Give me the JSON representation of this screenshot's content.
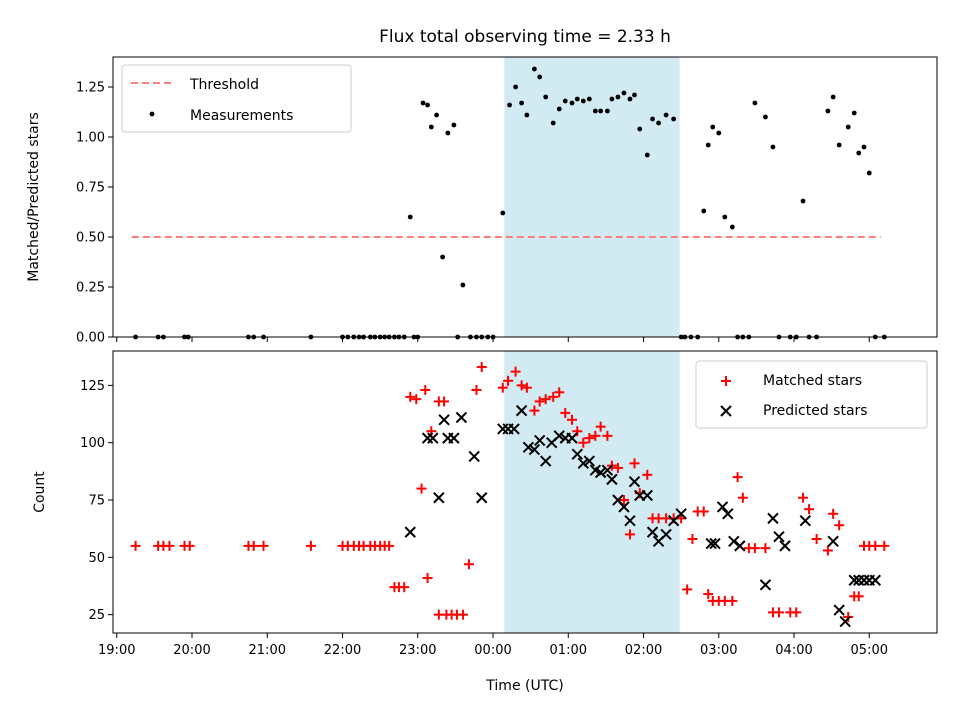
{
  "chart_data": [
    {
      "type": "scatter",
      "panel": "top",
      "title": "Flux total observing time = 2.33 h",
      "xlabel": "",
      "ylabel": "Matched/Predicted stars",
      "xlim": [
        -5.05,
        5.9
      ],
      "ylim": [
        0,
        1.4
      ],
      "yticks": [
        0,
        0.25,
        0.5,
        0.75,
        1.0,
        1.25
      ],
      "ytick_labels": [
        "0.00",
        "0.25",
        "0.50",
        "0.75",
        "1.00",
        "1.25"
      ],
      "xticks": [
        -5,
        -4,
        -3,
        -2,
        -1,
        0,
        1,
        2,
        3,
        4,
        5
      ],
      "xtick_labels": [
        "",
        "",
        "",
        "",
        "",
        "",
        "",
        "",
        "",
        "",
        ""
      ],
      "grid": false,
      "legend_position": "top-left",
      "shaded_span": {
        "x_start": 0.15,
        "x_end": 2.48,
        "color": "#add8e6"
      },
      "series": [
        {
          "name": "Threshold",
          "style": "dashed-line",
          "color": "#ff7f7f",
          "x": [
            -4.8,
            5.15
          ],
          "y": [
            0.5,
            0.5
          ]
        },
        {
          "name": "Measurements",
          "style": "dot",
          "color": "#000000",
          "x": [
            -4.75,
            -4.45,
            -4.38,
            -4.1,
            -4.05,
            -3.25,
            -3.18,
            -3.05,
            -2.42,
            -2.0,
            -1.93,
            -1.85,
            -1.78,
            -1.72,
            -1.63,
            -1.57,
            -1.5,
            -1.44,
            -1.38,
            -1.31,
            -1.25,
            -1.18,
            -1.1,
            -1.05,
            -1.0,
            -0.93,
            -0.87,
            -0.82,
            -0.75,
            -0.67,
            -0.6,
            -0.52,
            -0.47,
            -0.4,
            -0.3,
            -0.22,
            -0.15,
            -0.07,
            0.0,
            0.13,
            0.22,
            0.3,
            0.38,
            0.45,
            0.55,
            0.62,
            0.7,
            0.8,
            0.88,
            0.96,
            1.05,
            1.12,
            1.2,
            1.28,
            1.36,
            1.43,
            1.52,
            1.58,
            1.66,
            1.74,
            1.82,
            1.88,
            1.95,
            2.05,
            2.12,
            2.2,
            2.3,
            2.4,
            2.5,
            2.55,
            2.63,
            2.72,
            2.8,
            2.86,
            2.92,
            3.0,
            3.08,
            3.18,
            3.25,
            3.32,
            3.4,
            3.48,
            3.62,
            3.72,
            3.8,
            3.95,
            4.03,
            4.12,
            4.2,
            4.3,
            4.45,
            4.52,
            4.6,
            4.72,
            4.8,
            4.86,
            4.93,
            5.0,
            5.08,
            5.2
          ],
          "y": [
            0,
            0,
            0,
            0,
            0,
            0,
            0,
            0,
            0,
            0,
            0,
            0,
            0,
            0,
            0,
            0,
            0,
            0,
            0,
            0,
            0,
            0,
            0.6,
            0,
            0,
            1.17,
            1.16,
            1.05,
            1.11,
            0.4,
            1.02,
            1.06,
            0,
            0.26,
            0,
            0,
            0,
            0,
            0,
            0.62,
            1.16,
            1.25,
            1.17,
            1.11,
            1.34,
            1.3,
            1.2,
            1.07,
            1.14,
            1.18,
            1.17,
            1.19,
            1.18,
            1.19,
            1.13,
            1.13,
            1.13,
            1.19,
            1.2,
            1.22,
            1.19,
            1.21,
            1.04,
            0.91,
            1.09,
            1.07,
            1.11,
            1.09,
            0,
            0,
            0,
            0,
            0.63,
            0.96,
            1.05,
            1.02,
            0.6,
            0.55,
            0,
            0,
            0,
            1.17,
            1.1,
            0.95,
            0,
            0,
            0,
            0.68,
            0,
            0,
            1.13,
            1.2,
            0.96,
            1.05,
            1.12,
            0.92,
            0.95,
            0.82,
            0,
            0
          ]
        }
      ]
    },
    {
      "type": "scatter",
      "panel": "bottom",
      "title": "",
      "xlabel": "Time (UTC)",
      "ylabel": "Count",
      "xlim": [
        -5.05,
        5.9
      ],
      "ylim": [
        17,
        140
      ],
      "yticks": [
        25,
        50,
        75,
        100,
        125
      ],
      "ytick_labels": [
        "25",
        "50",
        "75",
        "100",
        "125"
      ],
      "xticks": [
        -5,
        -4,
        -3,
        -2,
        -1,
        0,
        1,
        2,
        3,
        4,
        5
      ],
      "xtick_labels": [
        "19:00",
        "20:00",
        "21:00",
        "22:00",
        "23:00",
        "00:00",
        "01:00",
        "02:00",
        "03:00",
        "04:00",
        "05:00"
      ],
      "grid": false,
      "legend_position": "top-right",
      "shaded_span": {
        "x_start": 0.15,
        "x_end": 2.48,
        "color": "#add8e6"
      },
      "series": [
        {
          "name": "Matched stars",
          "style": "plus",
          "color": "#ff0000",
          "x": [
            -4.75,
            -4.45,
            -4.38,
            -4.3,
            -4.1,
            -4.03,
            -3.25,
            -3.18,
            -3.05,
            -2.42,
            -2.0,
            -1.93,
            -1.85,
            -1.78,
            -1.72,
            -1.63,
            -1.57,
            -1.5,
            -1.44,
            -1.38,
            -1.31,
            -1.25,
            -1.18,
            -1.1,
            -1.02,
            -0.95,
            -0.9,
            -0.87,
            -0.82,
            -0.72,
            -0.65,
            -0.72,
            -0.62,
            -0.55,
            -0.48,
            -0.4,
            -0.32,
            -0.22,
            -0.15,
            0.13,
            0.2,
            0.3,
            0.38,
            0.45,
            0.55,
            0.62,
            0.7,
            0.8,
            0.88,
            0.96,
            1.05,
            1.12,
            1.2,
            1.28,
            1.36,
            1.43,
            1.52,
            1.58,
            1.66,
            1.74,
            1.82,
            1.88,
            1.95,
            2.05,
            2.12,
            2.2,
            2.3,
            2.4,
            2.5,
            2.58,
            2.65,
            2.72,
            2.8,
            2.86,
            2.92,
            3.0,
            3.08,
            3.18,
            3.25,
            3.32,
            3.4,
            3.48,
            3.62,
            3.72,
            3.8,
            3.95,
            4.03,
            4.12,
            4.2,
            4.3,
            4.45,
            4.52,
            4.6,
            4.72,
            4.8,
            4.86,
            4.93,
            5.0,
            5.08,
            5.2
          ],
          "y": [
            55,
            55,
            55,
            55,
            55,
            55,
            55,
            55,
            55,
            55,
            55,
            55,
            55,
            55,
            55,
            55,
            55,
            55,
            55,
            55,
            37,
            37,
            37,
            120,
            119,
            80,
            123,
            41,
            105,
            118,
            118,
            25,
            25,
            25,
            25,
            25,
            47,
            123,
            133,
            124,
            127,
            131,
            125,
            124,
            114,
            118,
            119,
            120,
            122,
            113,
            110,
            105,
            100,
            102,
            103,
            107,
            103,
            90,
            89,
            75,
            60,
            91,
            78,
            86,
            67,
            67,
            67,
            67,
            67,
            36,
            58,
            70,
            70,
            34,
            31,
            31,
            31,
            31,
            85,
            76,
            54,
            54,
            54,
            26,
            26,
            26,
            26,
            76,
            71,
            58,
            53,
            69,
            64,
            24,
            33,
            33,
            55,
            55,
            55,
            55
          ],
          "note": ""
        },
        {
          "name": "Predicted stars",
          "style": "x",
          "color": "#000000",
          "x": [
            -1.1,
            -0.87,
            -0.8,
            -0.72,
            -0.65,
            -0.6,
            -0.52,
            -0.42,
            -0.25,
            -0.15,
            0.13,
            0.2,
            0.28,
            0.38,
            0.47,
            0.55,
            0.62,
            0.7,
            0.78,
            0.88,
            0.96,
            1.05,
            1.12,
            1.2,
            1.28,
            1.36,
            1.43,
            1.52,
            1.58,
            1.66,
            1.74,
            1.82,
            1.88,
            1.95,
            2.05,
            2.12,
            2.2,
            2.3,
            2.4,
            2.5,
            2.9,
            2.95,
            3.05,
            3.12,
            3.2,
            3.28,
            3.62,
            3.72,
            3.8,
            3.88,
            4.15,
            4.52,
            4.6,
            4.68,
            4.8,
            4.86,
            4.93,
            5.0,
            5.08
          ],
          "y": [
            61,
            102,
            102,
            76,
            110,
            102,
            102,
            111,
            94,
            76,
            106,
            106,
            106,
            114,
            98,
            97,
            101,
            92,
            100,
            103,
            102,
            102,
            95,
            91,
            92,
            88,
            87,
            88,
            84,
            75,
            72,
            66,
            83,
            77,
            77,
            61,
            57,
            60,
            66,
            69,
            56,
            56,
            72,
            69,
            57,
            55,
            38,
            67,
            59,
            55,
            66,
            57,
            27,
            22,
            40,
            40,
            40,
            40,
            40
          ]
        }
      ]
    }
  ],
  "legend": {
    "top": [
      "Threshold",
      "Measurements"
    ],
    "bottom": [
      "Matched stars",
      "Predicted stars"
    ]
  }
}
